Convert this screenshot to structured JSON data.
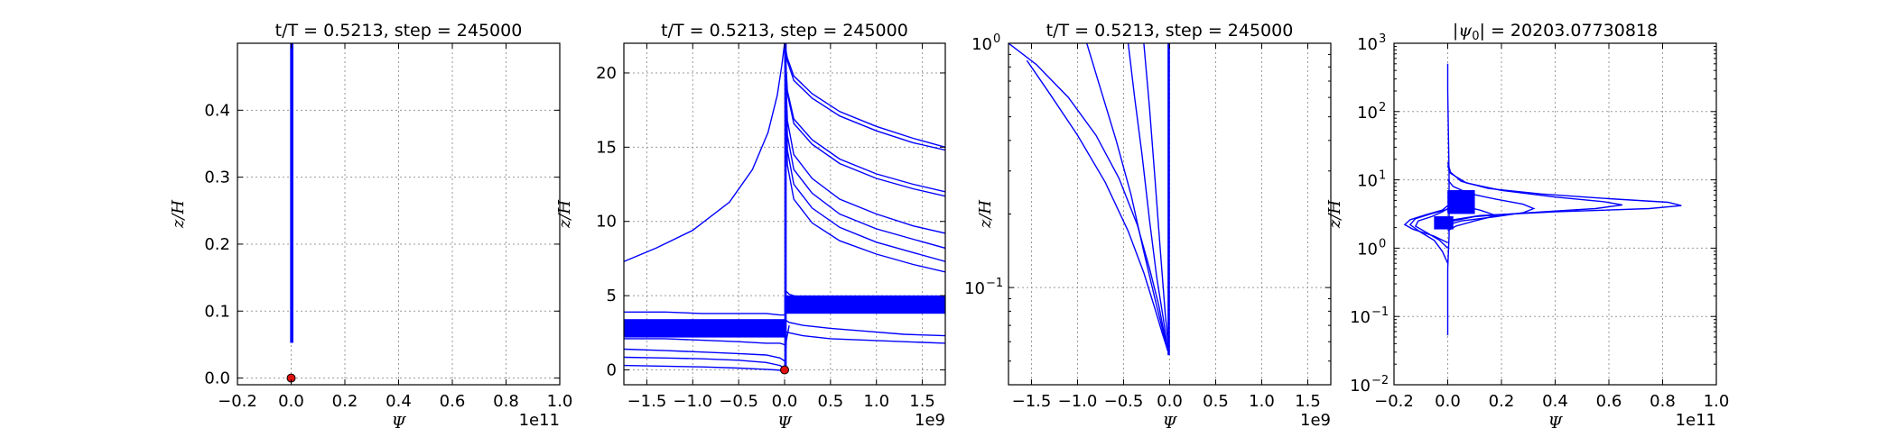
{
  "chart_data": [
    {
      "type": "line",
      "title": "t/T = 0.5213, step = 245000",
      "xlabel": "Ψ",
      "ylabel": "z/H",
      "x_offset_label": "1e11",
      "xlim": [
        -0.2,
        1.0
      ],
      "ylim": [
        -0.01,
        0.5
      ],
      "yscale": "linear",
      "xticks": [
        -0.2,
        0.0,
        0.2,
        0.4,
        0.6,
        0.8,
        1.0
      ],
      "xtick_labels": [
        "−0.2",
        "0.0",
        "0.2",
        "0.4",
        "0.6",
        "0.8",
        "1.0"
      ],
      "yticks": [
        0.0,
        0.1,
        0.2,
        0.3,
        0.4
      ],
      "ytick_labels": [
        "0.0",
        "0.1",
        "0.2",
        "0.3",
        "0.4"
      ],
      "grid": true,
      "series": [
        {
          "kind": "band",
          "x": [
            -0.003,
            0.003
          ],
          "y": [
            0.053,
            0.5
          ]
        }
      ],
      "markers": [
        {
          "x": 0.0,
          "y": 0.0
        }
      ]
    },
    {
      "type": "line",
      "title": "t/T = 0.5213, step = 245000",
      "xlabel": "Ψ",
      "ylabel": "z/H",
      "x_offset_label": "1e9",
      "xlim": [
        -1.75,
        1.75
      ],
      "ylim": [
        -1.0,
        22.0
      ],
      "yscale": "linear",
      "xticks": [
        -1.5,
        -1.0,
        -0.5,
        0.0,
        0.5,
        1.0,
        1.5
      ],
      "xtick_labels": [
        "−1.5",
        "−1.0",
        "−0.5",
        "0.0",
        "0.5",
        "1.0",
        "1.5"
      ],
      "yticks": [
        0,
        5,
        10,
        15,
        20
      ],
      "ytick_labels": [
        "0",
        "5",
        "10",
        "15",
        "20"
      ],
      "grid": true,
      "series": [
        {
          "kind": "line",
          "x": [
            -1.75,
            -1.4,
            -1.0,
            -0.6,
            -0.35,
            -0.18,
            -0.08,
            -0.03,
            0.0
          ],
          "y": [
            7.3,
            8.2,
            9.4,
            11.3,
            13.5,
            16.0,
            18.5,
            20.5,
            22.0
          ]
        },
        {
          "kind": "line",
          "x": [
            0.0,
            0.03,
            0.1,
            0.3,
            0.6,
            1.0,
            1.4,
            1.75
          ],
          "y": [
            22.0,
            21.0,
            19.8,
            18.6,
            17.4,
            16.4,
            15.6,
            15.0
          ]
        },
        {
          "kind": "line",
          "x": [
            0.0,
            0.03,
            0.1,
            0.3,
            0.6,
            1.0,
            1.4,
            1.75
          ],
          "y": [
            22.0,
            20.8,
            19.5,
            18.3,
            17.1,
            16.1,
            15.3,
            14.8
          ]
        },
        {
          "kind": "line",
          "x": [
            0.0,
            0.03,
            0.1,
            0.3,
            0.6,
            1.0,
            1.4,
            1.75
          ],
          "y": [
            22.0,
            18.8,
            16.9,
            15.5,
            14.2,
            13.2,
            12.5,
            12.0
          ]
        },
        {
          "kind": "line",
          "x": [
            0.0,
            0.03,
            0.1,
            0.3,
            0.6,
            1.0,
            1.4,
            1.75
          ],
          "y": [
            22.0,
            18.6,
            16.6,
            15.2,
            13.9,
            12.9,
            12.2,
            11.7
          ]
        },
        {
          "kind": "line",
          "x": [
            0.0,
            0.03,
            0.1,
            0.3,
            0.6,
            1.0,
            1.4,
            1.75
          ],
          "y": [
            22.0,
            16.8,
            14.5,
            12.9,
            11.5,
            10.5,
            9.7,
            9.2
          ]
        },
        {
          "kind": "line",
          "x": [
            0.0,
            0.03,
            0.1,
            0.3,
            0.6,
            1.0,
            1.4,
            1.75
          ],
          "y": [
            22.0,
            15.8,
            13.5,
            11.9,
            10.5,
            9.5,
            8.8,
            8.2
          ]
        },
        {
          "kind": "line",
          "x": [
            0.0,
            0.03,
            0.1,
            0.3,
            0.6,
            1.0,
            1.4,
            1.75
          ],
          "y": [
            22.0,
            14.8,
            12.5,
            10.9,
            9.6,
            8.6,
            7.9,
            7.3
          ]
        },
        {
          "kind": "line",
          "x": [
            0.0,
            0.03,
            0.1,
            0.3,
            0.6,
            1.0,
            1.4,
            1.75
          ],
          "y": [
            22.0,
            13.8,
            11.5,
            9.9,
            8.7,
            7.8,
            7.1,
            6.6
          ]
        },
        {
          "kind": "line",
          "x": [
            0.0,
            0.05,
            0.2,
            0.5,
            0.9,
            1.3,
            1.75
          ],
          "y": [
            5.4,
            5.1,
            4.8,
            4.5,
            4.2,
            4.0,
            3.9
          ]
        },
        {
          "kind": "line",
          "x": [
            0.0,
            0.05,
            0.2,
            0.5,
            0.9,
            1.3,
            1.75
          ],
          "y": [
            3.4,
            3.2,
            3.0,
            2.8,
            2.6,
            2.4,
            2.3
          ]
        },
        {
          "kind": "line",
          "x": [
            0.0,
            0.05,
            0.2,
            0.5,
            0.9,
            1.3,
            1.75
          ],
          "y": [
            2.6,
            2.5,
            2.3,
            2.1,
            2.0,
            1.9,
            1.8
          ]
        },
        {
          "kind": "line",
          "x": [
            -1.75,
            -1.3,
            -0.9,
            -0.5,
            -0.2,
            -0.05,
            0.0
          ],
          "y": [
            3.9,
            3.9,
            3.8,
            3.8,
            3.8,
            3.7,
            3.7
          ]
        },
        {
          "kind": "line",
          "x": [
            -1.75,
            -1.3,
            -0.9,
            -0.5,
            -0.2,
            -0.05,
            0.0
          ],
          "y": [
            3.3,
            3.3,
            3.3,
            3.2,
            3.2,
            3.2,
            3.1
          ]
        },
        {
          "kind": "line",
          "x": [
            -1.75,
            -1.3,
            -0.9,
            -0.5,
            -0.2,
            -0.05,
            0.0
          ],
          "y": [
            2.1,
            2.1,
            2.0,
            1.9,
            1.8,
            1.8,
            1.7
          ]
        },
        {
          "kind": "line",
          "x": [
            -1.75,
            -1.3,
            -0.9,
            -0.5,
            -0.2,
            -0.05,
            0.0
          ],
          "y": [
            1.4,
            1.3,
            1.2,
            1.1,
            1.0,
            0.8,
            0.6
          ]
        },
        {
          "kind": "line",
          "x": [
            -1.75,
            -1.3,
            -0.9,
            -0.5,
            -0.2,
            -0.05,
            0.0
          ],
          "y": [
            0.85,
            0.8,
            0.75,
            0.65,
            0.5,
            0.3,
            0.1
          ]
        },
        {
          "kind": "line",
          "x": [
            -1.75,
            -1.3,
            -0.9,
            -0.5,
            -0.25,
            -0.1,
            0.0
          ],
          "y": [
            0.3,
            0.25,
            0.2,
            0.12,
            0.05,
            0.0,
            -0.05
          ]
        },
        {
          "kind": "line",
          "x": [
            0.0,
            0.02,
            0.05
          ],
          "y": [
            -0.05,
            2.0,
            3.0
          ]
        }
      ],
      "bands": [
        {
          "x": [
            -1.75,
            0.0
          ],
          "y": [
            2.2,
            3.4
          ]
        },
        {
          "x": [
            0.0,
            0.02
          ],
          "y": [
            0.0,
            22.0
          ]
        },
        {
          "x": [
            0.0,
            1.75
          ],
          "y": [
            3.8,
            5.0
          ]
        }
      ],
      "markers": [
        {
          "x": 0.0,
          "y": 0.0
        }
      ]
    },
    {
      "type": "line",
      "title": "t/T = 0.5213, step = 245000",
      "xlabel": "Ψ",
      "ylabel": "z/H",
      "x_offset_label": "1e9",
      "xlim": [
        -1.75,
        1.75
      ],
      "ylim": [
        0.04,
        1.0
      ],
      "yscale": "log",
      "xticks": [
        -1.5,
        -1.0,
        -0.5,
        0.0,
        0.5,
        1.0,
        1.5
      ],
      "xtick_labels": [
        "−1.5",
        "−1.0",
        "−0.5",
        "0.0",
        "0.5",
        "1.0",
        "1.5"
      ],
      "yticks": [
        0.1,
        1.0
      ],
      "ytick_labels": [
        {
          "base": "10",
          "exp": "−1"
        },
        {
          "base": "10",
          "exp": "0"
        }
      ],
      "grid": true,
      "series": [
        {
          "kind": "line",
          "x": [
            -1.75,
            -1.45,
            -1.1,
            -0.8,
            -0.55,
            -0.35,
            -0.22,
            -0.12,
            -0.06,
            -0.02
          ],
          "y": [
            1.0,
            0.82,
            0.6,
            0.42,
            0.28,
            0.18,
            0.12,
            0.085,
            0.065,
            0.055
          ]
        },
        {
          "kind": "line",
          "x": [
            -1.55,
            -1.3,
            -1.0,
            -0.7,
            -0.45,
            -0.28,
            -0.16,
            -0.08,
            -0.02
          ],
          "y": [
            0.85,
            0.62,
            0.42,
            0.27,
            0.17,
            0.115,
            0.082,
            0.065,
            0.055
          ]
        },
        {
          "kind": "line",
          "x": [
            -0.9,
            -0.75,
            -0.58,
            -0.42,
            -0.28,
            -0.16,
            -0.08,
            -0.02
          ],
          "y": [
            1.0,
            0.65,
            0.4,
            0.24,
            0.14,
            0.09,
            0.068,
            0.055
          ]
        },
        {
          "kind": "line",
          "x": [
            -0.45,
            -0.38,
            -0.3,
            -0.22,
            -0.14,
            -0.07,
            -0.02
          ],
          "y": [
            1.0,
            0.6,
            0.35,
            0.19,
            0.11,
            0.075,
            0.055
          ]
        },
        {
          "kind": "line",
          "x": [
            -0.28,
            -0.22,
            -0.16,
            -0.1,
            -0.05,
            -0.01
          ],
          "y": [
            1.0,
            0.55,
            0.28,
            0.14,
            0.08,
            0.055
          ]
        }
      ],
      "bands": [
        {
          "x": [
            -0.02,
            0.0
          ],
          "y": [
            0.053,
            1.0
          ]
        }
      ],
      "markers": []
    },
    {
      "type": "line",
      "title": "|ψ₀| = 20203.07730818",
      "title_prefix": "|ψ",
      "title_sub": "0",
      "title_value": "| = 20203.07730818",
      "xlabel": "Ψ",
      "ylabel": "z/H",
      "x_offset_label": "1e11",
      "xlim": [
        -0.2,
        1.0
      ],
      "ylim": [
        0.01,
        1000
      ],
      "yscale": "log",
      "xticks": [
        -0.2,
        0.0,
        0.2,
        0.4,
        0.6,
        0.8,
        1.0
      ],
      "xtick_labels": [
        "−0.2",
        "0.0",
        "0.2",
        "0.4",
        "0.6",
        "0.8",
        "1.0"
      ],
      "yticks": [
        0.01,
        0.1,
        1,
        10,
        100,
        1000
      ],
      "ytick_labels": [
        {
          "base": "10",
          "exp": "−2"
        },
        {
          "base": "10",
          "exp": "−1"
        },
        {
          "base": "10",
          "exp": "0"
        },
        {
          "base": "10",
          "exp": "1"
        },
        {
          "base": "10",
          "exp": "2"
        },
        {
          "base": "10",
          "exp": "3"
        }
      ],
      "grid": true,
      "series": [
        {
          "kind": "line",
          "x": [
            0.0,
            0.0,
            0.005,
            0.005,
            0.0,
            0.0
          ],
          "y": [
            0.053,
            0.5,
            1.5,
            12.0,
            200.0,
            500.0
          ]
        },
        {
          "kind": "line",
          "x": [
            0.0,
            0.02,
            0.12,
            0.4,
            0.75,
            0.87,
            0.82,
            0.6,
            0.35,
            0.15,
            0.05,
            0.01,
            0.0
          ],
          "y": [
            2.2,
            2.6,
            3.0,
            3.4,
            3.8,
            4.2,
            4.7,
            5.3,
            6.2,
            7.5,
            9.5,
            13.0,
            18.0
          ]
        },
        {
          "kind": "line",
          "x": [
            0.0,
            0.02,
            0.1,
            0.3,
            0.55,
            0.65,
            0.58,
            0.4,
            0.2,
            0.07,
            0.01,
            0.0
          ],
          "y": [
            2.2,
            2.5,
            2.9,
            3.3,
            3.8,
            4.3,
            4.8,
            5.6,
            7.0,
            9.0,
            12.5,
            16.0
          ]
        },
        {
          "kind": "line",
          "x": [
            0.0,
            0.05,
            0.18,
            0.28,
            0.32,
            0.28,
            0.18,
            0.08,
            0.02,
            0.0
          ],
          "y": [
            2.2,
            2.5,
            2.9,
            3.3,
            3.8,
            4.4,
            5.2,
            6.3,
            8.0,
            10.0
          ]
        },
        {
          "kind": "line",
          "x": [
            0.0,
            -0.05,
            -0.13,
            -0.16,
            -0.14,
            -0.08,
            -0.02,
            0.0
          ],
          "y": [
            1.2,
            1.5,
            1.9,
            2.2,
            2.6,
            3.1,
            3.6,
            4.2
          ]
        },
        {
          "kind": "line",
          "x": [
            0.0,
            -0.03,
            -0.08,
            -0.12,
            -0.11,
            -0.06,
            -0.02,
            0.0
          ],
          "y": [
            1.0,
            1.3,
            1.7,
            2.1,
            2.5,
            2.9,
            3.4,
            3.8
          ]
        },
        {
          "kind": "line",
          "x": [
            0.0,
            -0.02,
            -0.05,
            -0.1,
            -0.14,
            -0.12,
            -0.06,
            0.0
          ],
          "y": [
            0.6,
            0.9,
            1.3,
            1.7,
            2.2,
            2.7,
            3.2,
            3.7
          ]
        },
        {
          "kind": "line",
          "x": [
            0.0,
            0.03,
            0.1,
            0.18,
            0.12,
            0.04,
            0.0
          ],
          "y": [
            1.8,
            2.1,
            2.5,
            3.0,
            3.6,
            4.3,
            5.0
          ]
        }
      ],
      "bands": [
        {
          "x": [
            0.0,
            0.1
          ],
          "y": [
            3.2,
            7.0
          ]
        },
        {
          "x": [
            -0.05,
            0.02
          ],
          "y": [
            1.9,
            2.9
          ]
        }
      ],
      "markers": []
    }
  ]
}
